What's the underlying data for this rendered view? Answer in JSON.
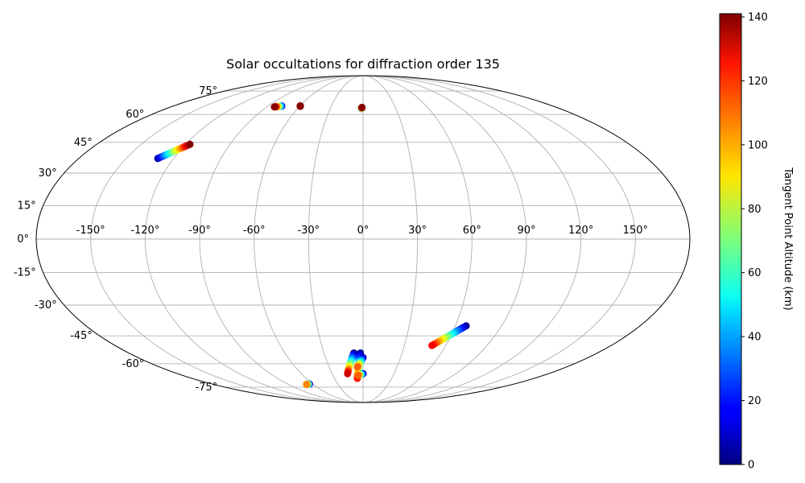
{
  "chart_data": {
    "type": "scatter",
    "projection": "mollweide",
    "title": "Solar occultations for diffraction order 135",
    "colormap": "jet",
    "grid": true,
    "longitude_ticks": [
      -150,
      -120,
      -90,
      -60,
      -30,
      0,
      30,
      60,
      90,
      120,
      150
    ],
    "longitude_tick_labels": [
      "-150°",
      "-120°",
      "-90°",
      "-60°",
      "-30°",
      "0°",
      "30°",
      "60°",
      "90°",
      "120°",
      "150°"
    ],
    "latitude_ticks": [
      -75,
      -60,
      -45,
      -30,
      -15,
      0,
      15,
      30,
      45,
      60,
      75
    ],
    "latitude_tick_labels": [
      "-75°",
      "-60°",
      "-45°",
      "-30°",
      "-15°",
      "0°",
      "15°",
      "30°",
      "45°",
      "60°",
      "75°"
    ],
    "colorbar": {
      "label": "Tangent Point Altitude (km)",
      "range": [
        0,
        141
      ],
      "ticks": [
        0,
        20,
        40,
        60,
        80,
        100,
        120,
        140
      ],
      "tick_labels": [
        "0",
        "20",
        "40",
        "60",
        "80",
        "100",
        "120",
        "140"
      ]
    },
    "series": [
      {
        "lon_start": -130,
        "lat_start": 37,
        "alt_start": 5,
        "lon_end": -117,
        "lat_end": 44,
        "alt_end": 140
      },
      {
        "lon_start": -77,
        "lat_start": 65,
        "alt_start": 15,
        "lon_end": -83,
        "lat_end": 64.5,
        "alt_end": 140
      },
      {
        "lon_start": -59.5,
        "lat_start": 65,
        "alt_start": 140,
        "lon_end": -59.5,
        "lat_end": 65,
        "alt_end": 140
      },
      {
        "lon_start": -1.5,
        "lat_start": 63.5,
        "alt_start": 40,
        "lon_end": -1,
        "lat_end": 64.2,
        "alt_end": 140
      },
      {
        "lon_start": 67,
        "lat_start": -40,
        "alt_start": 2,
        "lon_end": 50,
        "lat_end": -50,
        "alt_end": 125
      },
      {
        "lon_start": -64,
        "lat_start": -72.8,
        "alt_start": 5,
        "lon_end": -68,
        "lat_end": -73,
        "alt_end": 105
      },
      {
        "lon_start": -7,
        "lat_start": -54,
        "alt_start": 2,
        "lon_end": -15,
        "lat_end": -66,
        "alt_end": 130
      },
      {
        "lon_start": -2,
        "lat_start": -54,
        "alt_start": 2,
        "lon_end": -6,
        "lat_end": -69,
        "alt_end": 120
      },
      {
        "lon_start": 0,
        "lat_start": -56.5,
        "alt_start": 2,
        "lon_end": -5,
        "lat_end": -62,
        "alt_end": 110
      },
      {
        "lon_start": 0,
        "lat_start": -66,
        "alt_start": 2,
        "lon_end": -5,
        "lat_end": -67,
        "alt_end": 110
      }
    ]
  }
}
